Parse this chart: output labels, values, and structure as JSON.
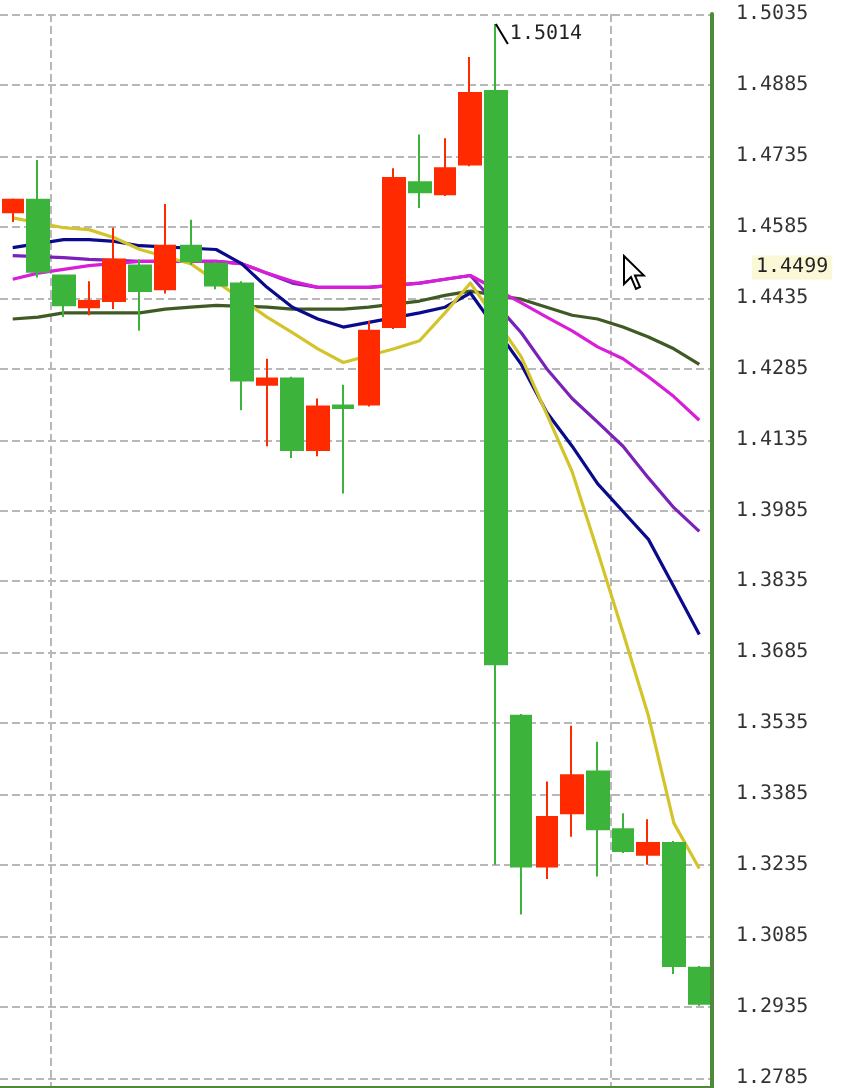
{
  "chart_data": {
    "type": "candlestick",
    "categories": [
      null,
      null,
      null,
      null,
      null,
      null,
      null,
      null,
      null,
      null,
      null,
      null,
      null,
      null,
      null,
      null,
      null,
      null,
      null,
      null,
      null,
      null,
      null,
      null,
      null,
      null,
      null,
      null
    ],
    "colors": [
      "#ff2a00",
      "#3cb43c",
      "#3cb43c",
      "#ff2a00",
      "#ff2a00",
      "#3cb43c",
      "#ff2a00",
      "#3cb43c",
      "#3cb43c",
      "#3cb43c",
      "#ff2a00",
      "#3cb43c",
      "#ff2a00",
      "#3cb43c",
      "#ff2a00",
      "#ff2a00",
      "#3cb43c",
      "#ff2a00",
      "#ff2a00",
      "#3cb43c",
      "#3cb43c",
      "#ff2a00",
      "#ff2a00",
      "#3cb43c",
      "#3cb43c",
      "#ff2a00",
      "#3cb43c",
      "#3cb43c"
    ],
    "ohlc": [
      [
        1.4616,
        1.4645,
        1.4595,
        1.4642
      ],
      [
        1.4642,
        1.4726,
        1.4478,
        1.449
      ],
      [
        1.4482,
        1.4482,
        1.4394,
        1.4419
      ],
      [
        1.4415,
        1.447,
        1.4398,
        1.4428
      ],
      [
        1.4428,
        1.4583,
        1.4411,
        1.4516
      ],
      [
        1.4503,
        1.4516,
        1.4365,
        1.4449
      ],
      [
        1.4453,
        1.4633,
        1.4444,
        1.4545
      ],
      [
        1.4545,
        1.46,
        1.4505,
        1.4512
      ],
      [
        1.4507,
        1.4511,
        1.4453,
        1.4461
      ],
      [
        1.4465,
        1.447,
        1.4197,
        1.426
      ],
      [
        1.4251,
        1.4306,
        1.4121,
        1.4264
      ],
      [
        1.4264,
        1.4268,
        1.4096,
        1.4113
      ],
      [
        1.4113,
        1.4222,
        1.41,
        1.4205
      ],
      [
        1.4207,
        1.4251,
        1.4021,
        1.4202
      ],
      [
        1.4209,
        1.4386,
        1.4205,
        1.4365
      ],
      [
        1.4373,
        1.4709,
        1.4369,
        1.4688
      ],
      [
        1.4679,
        1.478,
        1.4625,
        1.4658
      ],
      [
        1.4654,
        1.4772,
        1.465,
        1.4709
      ],
      [
        1.4717,
        1.4944,
        1.4713,
        1.4868
      ],
      [
        1.4872,
        1.5014,
        1.3236,
        1.366
      ],
      [
        1.3551,
        1.3555,
        1.3131,
        1.3232
      ],
      [
        1.3232,
        1.3412,
        1.3206,
        1.3337
      ],
      [
        1.3345,
        1.353,
        1.3295,
        1.3425
      ],
      [
        1.3433,
        1.3496,
        1.3211,
        1.3311
      ],
      [
        1.3311,
        1.3345,
        1.3261,
        1.3265
      ],
      [
        1.3257,
        1.3332,
        1.3236,
        1.3282
      ],
      [
        1.3282,
        1.3286,
        1.3005,
        1.3022
      ],
      [
        1.3018,
        1.3022,
        1.2938,
        1.2942
      ]
    ],
    "series": [
      {
        "type": "line",
        "color": "#3f5a24",
        "values": [
          1.439,
          1.4394,
          1.4403,
          1.4403,
          1.4403,
          1.4403,
          1.4411,
          1.4415,
          1.4419,
          null,
          1.4415,
          1.4411,
          1.4411,
          1.4411,
          1.4415,
          null,
          1.4428,
          1.444,
          1.4449,
          null,
          1.4432,
          1.4415,
          1.4398,
          1.439,
          1.4373,
          1.4352,
          1.4327,
          1.4294
        ]
      },
      {
        "type": "line",
        "color": "#7a22b8",
        "values": [
          1.4524,
          null,
          1.452,
          1.4516,
          null,
          1.4512,
          null,
          null,
          1.4512,
          1.4507,
          1.4487,
          1.4466,
          1.4457,
          1.4457,
          1.4457,
          null,
          1.4466,
          1.4474,
          1.4482,
          null,
          1.4361,
          1.4285,
          1.4222,
          1.4172,
          1.4121,
          1.4054,
          1.3991,
          1.3941
        ]
      },
      {
        "type": "line",
        "color": "#d81ed8",
        "values": [
          1.4474,
          1.4487,
          1.4495,
          1.4503,
          null,
          1.4512,
          null,
          null,
          1.4512,
          1.4507,
          1.4487,
          1.447,
          1.4457,
          1.4457,
          1.4457,
          null,
          1.4466,
          1.4474,
          1.4482,
          null,
          1.4424,
          1.4394,
          1.4365,
          1.4331,
          1.4306,
          1.4268,
          1.4226,
          1.4176
        ]
      },
      {
        "type": "line",
        "color": "#0a0a8c",
        "values": [
          1.4541,
          null,
          1.4558,
          1.4558,
          1.4554,
          1.4545,
          null,
          null,
          1.4537,
          1.4507,
          1.4457,
          1.4415,
          1.439,
          1.4373,
          null,
          null,
          1.4403,
          1.4415,
          1.4445,
          null,
          1.4294,
          1.4193,
          1.4121,
          1.4042,
          1.3983,
          1.3924,
          1.3824,
          1.3723
        ]
      },
      {
        "type": "line",
        "color": "#d4c42c",
        "values": [
          1.4604,
          null,
          1.4583,
          1.4579,
          1.4562,
          1.4537,
          null,
          1.4507,
          null,
          null,
          1.4394,
          1.4361,
          1.4327,
          1.4298,
          null,
          1.4327,
          1.4344,
          1.4403,
          1.4466,
          null,
          1.431,
          1.4189,
          1.4067,
          1.3899,
          1.3727,
          1.3551,
          1.3324,
          1.3228
        ]
      }
    ],
    "ylim": [
      1.2765,
      1.5035
    ],
    "yticks": [
      1.2785,
      1.2935,
      1.3085,
      1.3235,
      1.3385,
      1.3535,
      1.3685,
      1.3835,
      1.3985,
      1.4135,
      1.4285,
      1.4435,
      1.4585,
      1.4735,
      1.4885,
      1.5035
    ],
    "annotations": [
      "1.5014",
      "1.4499"
    ],
    "grid": true,
    "tick_labels": "y",
    "marker": "none",
    "line_style": "solid"
  }
}
